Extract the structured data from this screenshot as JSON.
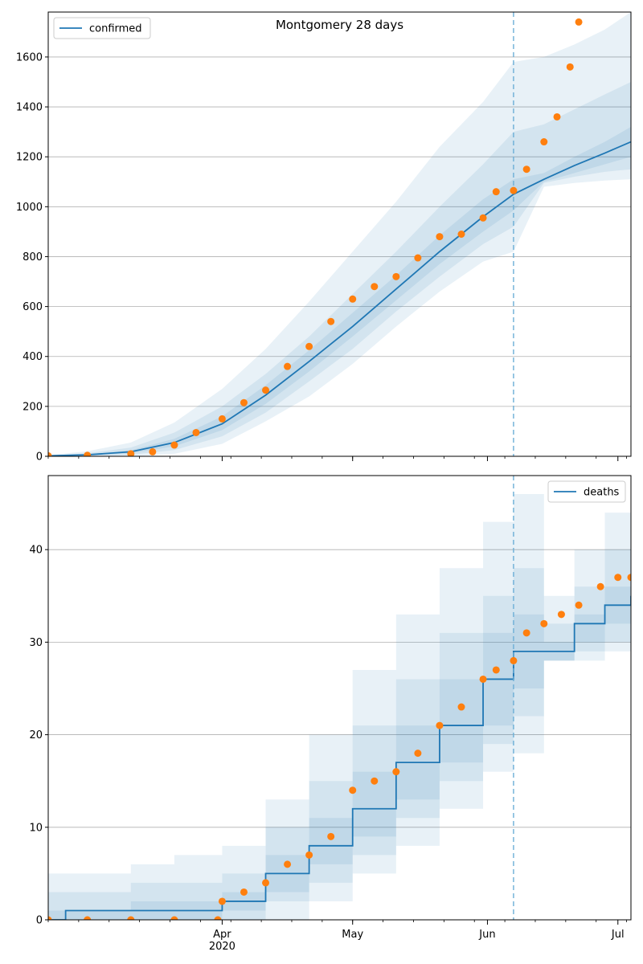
{
  "colors": {
    "line": "#1f77b4",
    "points": "#ff7f0e",
    "band": "#1f77b4",
    "grid": "#b0b0b0",
    "forecast_line": "#6baed6"
  },
  "x_axis": {
    "start_date": "2020-02-21",
    "end_date": "2020-07-04",
    "forecast_date": "2020-06-07",
    "tick_labels": [
      {
        "date": "2020-04-01",
        "label": "Apr",
        "sublabel": "2020"
      },
      {
        "date": "2020-05-01",
        "label": "May"
      },
      {
        "date": "2020-06-01",
        "label": "Jun"
      },
      {
        "date": "2020-07-01",
        "label": "Jul"
      }
    ]
  },
  "chart_data": [
    {
      "type": "line",
      "title": "Montgomery 28 days",
      "legend": {
        "label": "confirmed",
        "placement": "top-left"
      },
      "grid": true,
      "ylim": [
        0,
        1780
      ],
      "yticks": [
        0,
        200,
        400,
        600,
        800,
        1000,
        1200,
        1400,
        1600
      ],
      "model_line": {
        "x": [
          "2020-02-21",
          "2020-03-01",
          "2020-03-11",
          "2020-03-21",
          "2020-04-01",
          "2020-04-11",
          "2020-04-21",
          "2020-05-01",
          "2020-05-11",
          "2020-05-21",
          "2020-05-31",
          "2020-06-07",
          "2020-06-14",
          "2020-06-21",
          "2020-06-28",
          "2020-07-04"
        ],
        "y": [
          2,
          6,
          18,
          55,
          130,
          245,
          380,
          520,
          670,
          820,
          960,
          1050,
          1110,
          1165,
          1215,
          1260
        ]
      },
      "bands": [
        {
          "name": "outer",
          "lo": [
            0,
            0,
            0,
            10,
            50,
            140,
            240,
            370,
            520,
            660,
            780,
            820,
            1080,
            1095,
            1105,
            1110
          ],
          "hi": [
            5,
            20,
            55,
            135,
            270,
            430,
            620,
            820,
            1020,
            1240,
            1420,
            1580,
            1600,
            1650,
            1710,
            1780
          ]
        },
        {
          "name": "middle",
          "lo": [
            0,
            2,
            6,
            25,
            80,
            175,
            300,
            430,
            580,
            720,
            850,
            920,
            1095,
            1120,
            1140,
            1150
          ],
          "hi": [
            3,
            12,
            35,
            95,
            200,
            330,
            480,
            650,
            820,
            1000,
            1170,
            1300,
            1330,
            1390,
            1450,
            1500
          ]
        },
        {
          "name": "inner",
          "lo": [
            1,
            4,
            12,
            40,
            105,
            210,
            340,
            480,
            625,
            770,
            900,
            985,
            1100,
            1135,
            1170,
            1200
          ],
          "hi": [
            2,
            8,
            24,
            70,
            160,
            285,
            425,
            575,
            725,
            885,
            1030,
            1110,
            1135,
            1200,
            1260,
            1320
          ]
        }
      ],
      "observed": {
        "x": [
          "2020-02-21",
          "2020-03-01",
          "2020-03-11",
          "2020-03-16",
          "2020-03-21",
          "2020-03-26",
          "2020-04-01",
          "2020-04-06",
          "2020-04-11",
          "2020-04-16",
          "2020-04-21",
          "2020-04-26",
          "2020-05-01",
          "2020-05-06",
          "2020-05-11",
          "2020-05-16",
          "2020-05-21",
          "2020-05-26",
          "2020-05-31",
          "2020-06-03",
          "2020-06-07",
          "2020-06-10",
          "2020-06-14",
          "2020-06-17",
          "2020-06-20",
          "2020-06-22"
        ],
        "y": [
          2,
          4,
          10,
          18,
          45,
          95,
          150,
          215,
          265,
          360,
          440,
          540,
          630,
          680,
          720,
          795,
          880,
          890,
          955,
          1060,
          1065,
          1150,
          1260,
          1360,
          1560,
          1740
        ]
      }
    },
    {
      "type": "line",
      "title": "",
      "legend": {
        "label": "deaths",
        "placement": "top-right"
      },
      "grid": true,
      "ylim": [
        0,
        48
      ],
      "yticks": [
        0,
        10,
        20,
        30,
        40
      ],
      "model_line": {
        "x": [
          "2020-02-21",
          "2020-02-25",
          "2020-03-11",
          "2020-03-21",
          "2020-04-01",
          "2020-04-11",
          "2020-04-21",
          "2020-05-01",
          "2020-05-11",
          "2020-05-21",
          "2020-05-31",
          "2020-06-07",
          "2020-06-14",
          "2020-06-21",
          "2020-06-28",
          "2020-07-04"
        ],
        "y": [
          0,
          1,
          1,
          1,
          2,
          5,
          8,
          12,
          17,
          21,
          26,
          29,
          29,
          32,
          34,
          35
        ]
      },
      "bands": [
        {
          "name": "outer",
          "lo": [
            0,
            0,
            0,
            0,
            0,
            0,
            2,
            5,
            8,
            12,
            16,
            18,
            28,
            28,
            29,
            29
          ],
          "hi": [
            5,
            5,
            6,
            7,
            8,
            13,
            20,
            27,
            33,
            38,
            43,
            46,
            35,
            40,
            44,
            48
          ]
        },
        {
          "name": "middle",
          "lo": [
            0,
            0,
            0,
            0,
            0,
            2,
            4,
            7,
            11,
            15,
            19,
            22,
            28,
            29,
            30,
            31
          ],
          "hi": [
            3,
            3,
            4,
            4,
            5,
            10,
            15,
            21,
            26,
            31,
            35,
            38,
            32,
            36,
            40,
            43
          ]
        },
        {
          "name": "inner",
          "lo": [
            0,
            0,
            0,
            0,
            1,
            3,
            6,
            9,
            13,
            17,
            21,
            25,
            28,
            30,
            32,
            33
          ],
          "hi": [
            1,
            1,
            2,
            2,
            3,
            7,
            11,
            16,
            21,
            26,
            31,
            33,
            30,
            33,
            36,
            38
          ]
        }
      ],
      "observed": {
        "x": [
          "2020-02-21",
          "2020-03-01",
          "2020-03-11",
          "2020-03-21",
          "2020-03-31",
          "2020-04-01",
          "2020-04-06",
          "2020-04-11",
          "2020-04-16",
          "2020-04-21",
          "2020-04-26",
          "2020-05-01",
          "2020-05-06",
          "2020-05-11",
          "2020-05-16",
          "2020-05-21",
          "2020-05-26",
          "2020-05-31",
          "2020-06-03",
          "2020-06-07",
          "2020-06-10",
          "2020-06-14",
          "2020-06-18",
          "2020-06-22",
          "2020-06-27",
          "2020-07-01",
          "2020-07-04"
        ],
        "y": [
          0,
          0,
          0,
          0,
          0,
          2,
          3,
          4,
          6,
          7,
          9,
          14,
          15,
          16,
          18,
          21,
          23,
          26,
          27,
          28,
          31,
          32,
          33,
          34,
          36,
          37,
          37
        ]
      }
    }
  ]
}
